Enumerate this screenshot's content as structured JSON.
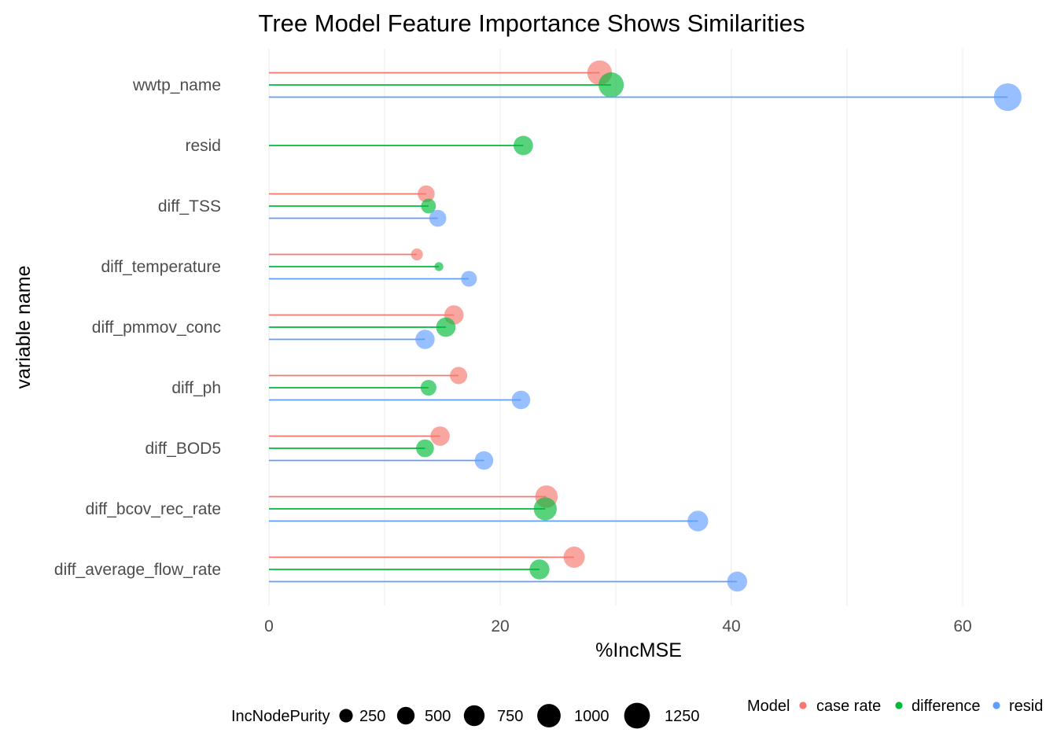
{
  "chart_data": {
    "type": "lollipop",
    "title": "Tree Model Feature Importance Shows Similarities",
    "xlabel": "%IncMSE",
    "ylabel": "variable name",
    "xlim": [
      -3,
      65
    ],
    "x_ticks": [
      0,
      20,
      40,
      60
    ],
    "grid": true,
    "categories": [
      "wwtp_name",
      "resid",
      "diff_TSS",
      "diff_temperature",
      "diff_pmmov_conc",
      "diff_ph",
      "diff_BOD5",
      "diff_bcov_rec_rate",
      "diff_average_flow_rate"
    ],
    "series": [
      {
        "name": "case rate",
        "color": "#F8766D",
        "values": [
          28.6,
          null,
          13.6,
          12.8,
          16.0,
          16.4,
          14.8,
          24.0,
          26.4
        ],
        "sizes": [
          1000,
          null,
          400,
          150,
          550,
          420,
          550,
          800,
          700
        ]
      },
      {
        "name": "difference",
        "color": "#00BA38",
        "values": [
          29.6,
          22.0,
          13.8,
          14.7,
          15.3,
          13.8,
          13.5,
          23.9,
          23.4
        ],
        "sizes": [
          1050,
          560,
          280,
          60,
          560,
          330,
          450,
          850,
          600
        ]
      },
      {
        "name": "resid",
        "color": "#619CFF",
        "values": [
          63.9,
          null,
          14.6,
          17.3,
          13.5,
          21.8,
          18.6,
          37.1,
          40.5
        ],
        "sizes": [
          1300,
          null,
          400,
          330,
          550,
          500,
          500,
          650,
          600
        ]
      }
    ],
    "legend_position": "bottom",
    "size_legend": {
      "title": "IncNodePurity",
      "values": [
        250,
        500,
        750,
        1000,
        1250
      ],
      "labels": [
        "250",
        "500",
        "750",
        "1000",
        "1250"
      ]
    },
    "color_legend": {
      "title": "Model",
      "labels": [
        "case rate",
        "difference",
        "resid"
      ]
    }
  }
}
